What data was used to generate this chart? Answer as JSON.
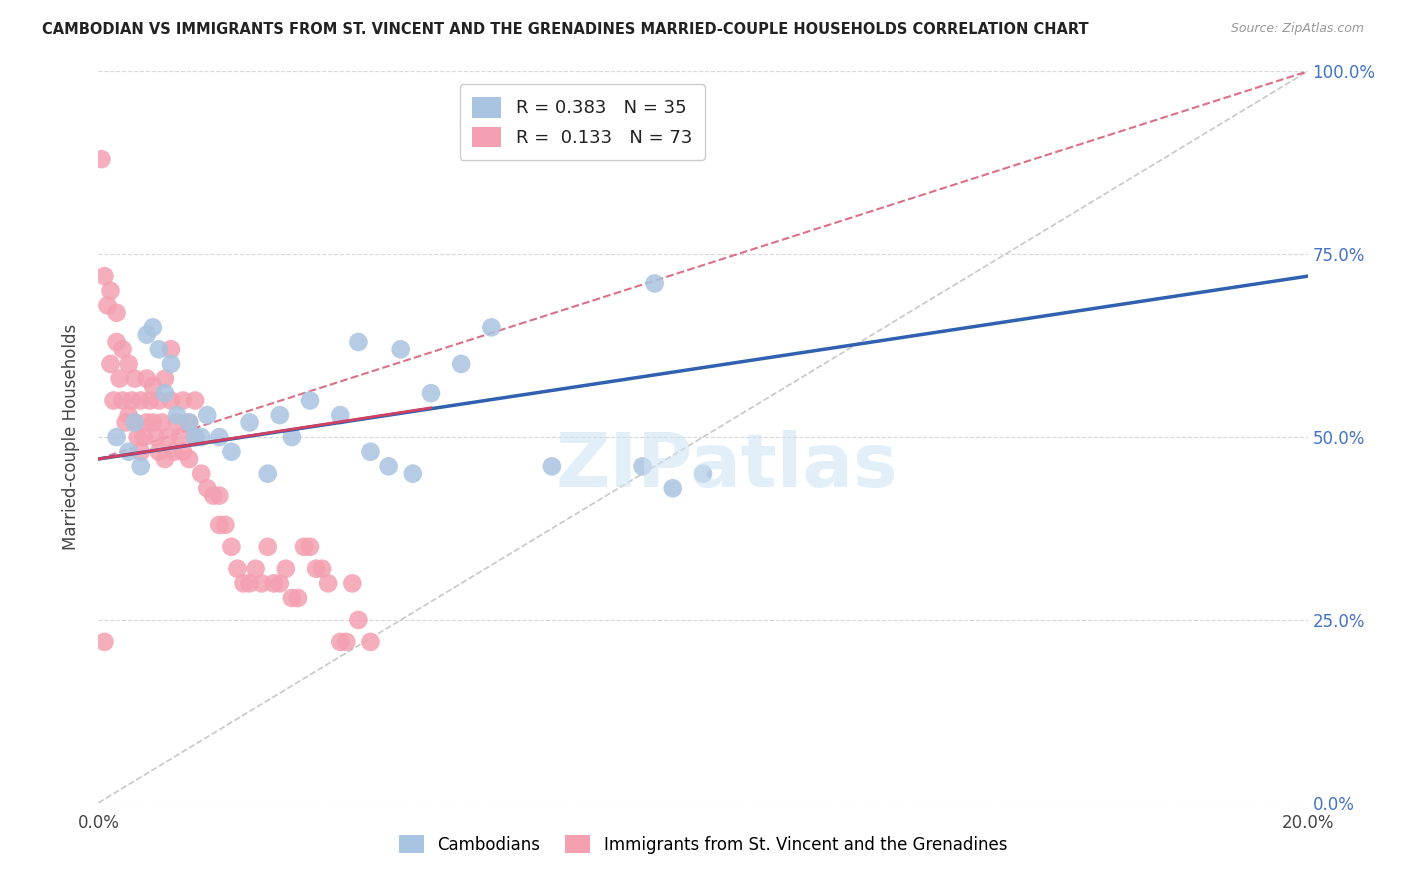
{
  "title": "CAMBODIAN VS IMMIGRANTS FROM ST. VINCENT AND THE GRENADINES MARRIED-COUPLE HOUSEHOLDS CORRELATION CHART",
  "source": "Source: ZipAtlas.com",
  "ylabel": "Married-couple Households",
  "ytick_labels": [
    "0.0%",
    "25.0%",
    "50.0%",
    "75.0%",
    "100.0%"
  ],
  "ytick_values": [
    0,
    25,
    50,
    75,
    100
  ],
  "xlim": [
    0,
    20
  ],
  "ylim": [
    0,
    100
  ],
  "legend_blue_R": "0.383",
  "legend_blue_N": "35",
  "legend_pink_R": "0.133",
  "legend_pink_N": "73",
  "legend_label_blue": "Cambodians",
  "legend_label_pink": "Immigrants from St. Vincent and the Grenadines",
  "blue_color": "#a8c4e0",
  "pink_color": "#f4a0b0",
  "blue_line_color": "#3060b0",
  "pink_line_color": "#d04060",
  "ref_line_color": "#c8c8c8",
  "watermark": "ZIPatlas",
  "blue_reg_x0": 0,
  "blue_reg_y0": 47,
  "blue_reg_x1": 20,
  "blue_reg_y1": 72,
  "pink_reg_x0": 0,
  "pink_reg_y0": 47,
  "pink_reg_x1": 20,
  "pink_reg_y1": 100,
  "pink_solid_x0": 0,
  "pink_solid_y0": 47,
  "pink_solid_x1": 5.5,
  "pink_solid_y1": 54,
  "blue_scatter_x": [
    0.3,
    0.5,
    0.6,
    0.7,
    0.8,
    0.9,
    1.0,
    1.1,
    1.2,
    1.3,
    1.5,
    1.6,
    1.7,
    1.8,
    2.0,
    2.2,
    2.5,
    2.8,
    3.0,
    3.2,
    3.5,
    4.0,
    4.3,
    5.0,
    5.5,
    6.0,
    6.5,
    7.5,
    9.0,
    9.5,
    10.0,
    4.5,
    4.8,
    5.2,
    9.2
  ],
  "blue_scatter_y": [
    50,
    48,
    52,
    46,
    64,
    65,
    62,
    56,
    60,
    53,
    52,
    50,
    50,
    53,
    50,
    48,
    52,
    45,
    53,
    50,
    55,
    53,
    63,
    62,
    56,
    60,
    65,
    46,
    46,
    43,
    45,
    48,
    46,
    45,
    71
  ],
  "pink_scatter_x": [
    0.05,
    0.1,
    0.15,
    0.2,
    0.2,
    0.25,
    0.3,
    0.3,
    0.35,
    0.4,
    0.4,
    0.45,
    0.5,
    0.5,
    0.55,
    0.6,
    0.6,
    0.65,
    0.7,
    0.7,
    0.75,
    0.8,
    0.8,
    0.85,
    0.9,
    0.9,
    0.95,
    1.0,
    1.0,
    1.05,
    1.1,
    1.1,
    1.15,
    1.2,
    1.2,
    1.25,
    1.3,
    1.35,
    1.4,
    1.4,
    1.5,
    1.5,
    1.6,
    1.6,
    1.7,
    1.8,
    1.9,
    2.0,
    2.0,
    2.1,
    2.2,
    2.3,
    2.4,
    2.5,
    2.6,
    2.7,
    2.8,
    2.9,
    3.0,
    3.1,
    3.2,
    3.3,
    3.4,
    3.5,
    3.6,
    3.7,
    3.8,
    4.0,
    4.1,
    4.2,
    4.3,
    4.5,
    0.1
  ],
  "pink_scatter_y": [
    88,
    72,
    68,
    60,
    70,
    55,
    63,
    67,
    58,
    55,
    62,
    52,
    53,
    60,
    55,
    52,
    58,
    50,
    48,
    55,
    50,
    52,
    58,
    55,
    52,
    57,
    50,
    55,
    48,
    52,
    58,
    47,
    50,
    62,
    55,
    48,
    52,
    50,
    55,
    48,
    47,
    52,
    50,
    55,
    45,
    43,
    42,
    38,
    42,
    38,
    35,
    32,
    30,
    30,
    32,
    30,
    35,
    30,
    30,
    32,
    28,
    28,
    35,
    35,
    32,
    32,
    30,
    22,
    22,
    30,
    25,
    22,
    22
  ]
}
